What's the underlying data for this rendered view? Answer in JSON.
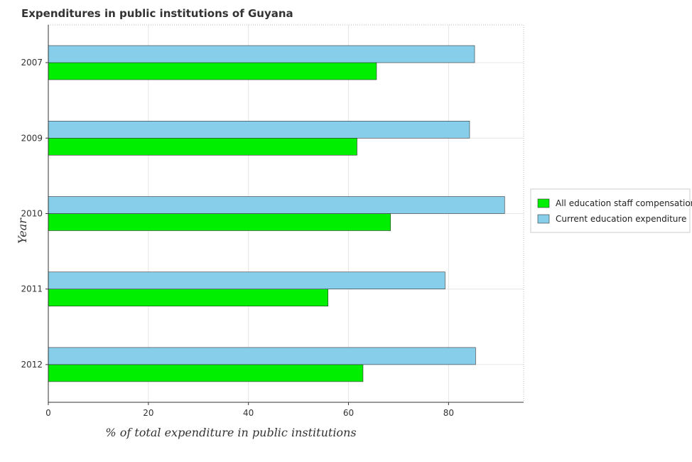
{
  "chart_data": {
    "type": "bar",
    "orientation": "horizontal",
    "title": "Expenditures in public institutions of Guyana",
    "xlabel": "% of total expenditure in public institutions",
    "ylabel": "Year",
    "categories": [
      "2007",
      "2009",
      "2010",
      "2011",
      "2012"
    ],
    "series": [
      {
        "name": "All education staff compensation",
        "color": "#00ee00",
        "values": [
          65.6,
          61.7,
          68.4,
          55.9,
          62.9
        ]
      },
      {
        "name": "Current education expenditure",
        "color": "#87ceeb",
        "values": [
          85.2,
          84.2,
          91.2,
          79.3,
          85.4
        ]
      }
    ],
    "xlim": [
      0,
      95
    ],
    "xticks": [
      0,
      20,
      40,
      60,
      80
    ],
    "grid": true,
    "legend_position": "right"
  }
}
